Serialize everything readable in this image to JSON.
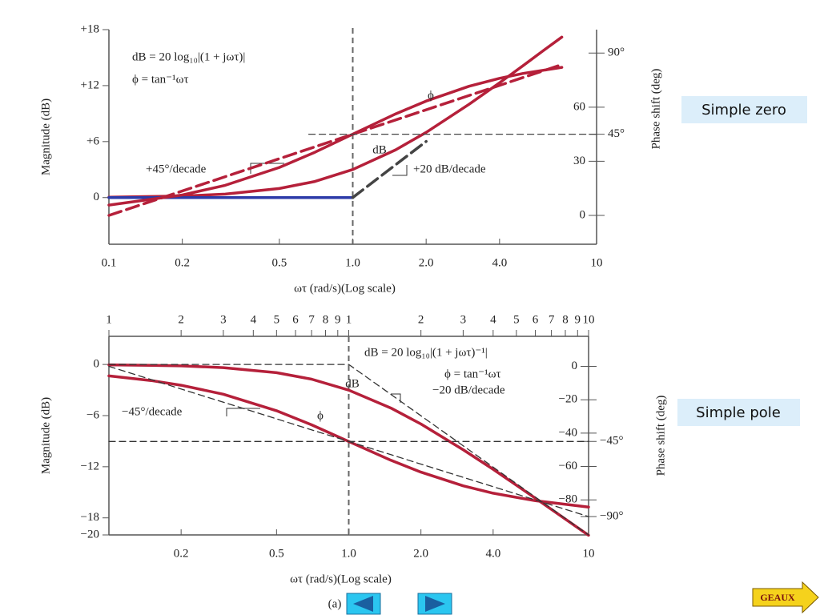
{
  "chart_data": [
    {
      "type": "line",
      "xscale": "log",
      "xlabel": "ωτ (rad/s)(Log scale)",
      "ylabel": "Magnitude (dB)",
      "y2label": "Phase shift (deg)",
      "xlim": [
        0.1,
        10
      ],
      "xticks": [
        0.1,
        0.2,
        0.5,
        {
          "value": 1,
          "label": "1.0"
        },
        {
          "value": 2,
          "label": "2.0"
        },
        {
          "value": 4,
          "label": "4.0"
        },
        10
      ],
      "ylim": [
        -5,
        18
      ],
      "yticks": [
        0,
        {
          "value": 6,
          "label": "+6"
        },
        {
          "value": 12,
          "label": "+12"
        },
        {
          "value": 18,
          "label": "+18"
        }
      ],
      "y2lim": [
        -16,
        103
      ],
      "y2ticks": [
        0,
        30,
        {
          "value": 45,
          "label": "45°"
        },
        60,
        {
          "value": 90,
          "label": "90°"
        }
      ],
      "vlines": [
        1
      ],
      "annotations": [
        "dB  = 20 log₁₀|(1 + jωτ)|",
        "ϕ = tan⁻¹ωτ",
        "+45°/decade",
        "+20 dB/decade"
      ],
      "series": [
        {
          "name": "dB",
          "color": "#b5203a",
          "x": [
            0.1,
            0.2,
            0.3,
            0.5,
            0.7,
            1,
            1.5,
            2,
            3,
            4,
            5,
            6,
            7.2
          ],
          "values": [
            0.04,
            0.17,
            0.37,
            0.97,
            1.73,
            3.01,
            5.12,
            6.99,
            10,
            12.3,
            14.15,
            15.68,
            17.2
          ]
        },
        {
          "color": "#2d3ba8",
          "x": [
            0.1,
            1
          ],
          "values": [
            0,
            0
          ]
        },
        {
          "color": "#444444",
          "dashed": true,
          "x": [
            1,
            2
          ],
          "values": [
            0,
            6.02
          ]
        },
        {
          "name": "ϕ",
          "color": "#b5203a",
          "axis": "y2",
          "x": [
            0.1,
            0.2,
            0.3,
            0.5,
            0.7,
            1,
            1.5,
            2,
            3,
            4,
            5,
            7.2
          ],
          "values": [
            5.7,
            11.3,
            16.7,
            26.6,
            35,
            45,
            56.3,
            63.4,
            71.6,
            76,
            78.7,
            82.1
          ]
        },
        {
          "color": "#b5203a",
          "dashed": true,
          "axis": "y2",
          "x": [
            0.1,
            7.2
          ],
          "values": [
            0,
            83.6
          ]
        },
        {
          "color": "#444444",
          "dashed": true,
          "thin": true,
          "axis": "y2",
          "x": [
            0.66,
            10
          ],
          "values": [
            45,
            45
          ]
        }
      ]
    },
    {
      "type": "line",
      "xscale": "log",
      "xlabel": "ωτ (rad/s)(Log scale)",
      "ylabel": "Magnitude (dB)",
      "y2label": "Phase shift (deg)",
      "xlim": [
        0.1,
        10
      ],
      "xticks": [
        0.2,
        0.5,
        {
          "value": 1,
          "label": "1.0"
        },
        {
          "value": 2,
          "label": "2.0"
        },
        {
          "value": 4,
          "label": "4.0"
        },
        10
      ],
      "x2ticks": [
        {
          "value": 0.1,
          "label": "1"
        },
        {
          "value": 0.2,
          "label": "2"
        },
        {
          "value": 0.3,
          "label": "3"
        },
        {
          "value": 0.4,
          "label": "4"
        },
        {
          "value": 0.5,
          "label": "5"
        },
        {
          "value": 0.6,
          "label": "6"
        },
        {
          "value": 0.7,
          "label": "7"
        },
        {
          "value": 0.8,
          "label": "8"
        },
        {
          "value": 0.9,
          "label": "9"
        },
        1,
        2,
        3,
        4,
        5,
        6,
        7,
        8,
        9,
        10
      ],
      "ylim": [
        -20,
        3.3
      ],
      "yticks": [
        0,
        {
          "value": -6,
          "label": "−6"
        },
        {
          "value": -12,
          "label": "−12"
        },
        {
          "value": -18,
          "label": "−18"
        },
        {
          "value": -20,
          "label": "−20"
        }
      ],
      "y2lim": [
        -101,
        18
      ],
      "y2ticks": [
        0,
        {
          "value": -20,
          "label": "−20"
        },
        {
          "value": -40,
          "label": "−40"
        },
        {
          "value": -45,
          "label": "−45°"
        },
        {
          "value": -60,
          "label": "−60"
        },
        {
          "value": -80,
          "label": "−80"
        },
        {
          "value": -90,
          "label": "−90°"
        }
      ],
      "vlines": [
        1
      ],
      "annotations": [
        "dB = 20 log₁₀|(1 + jωτ)⁻¹|",
        "ϕ = tan⁻¹ωτ",
        "−20 dB/decade",
        "−45°/decade"
      ],
      "series": [
        {
          "name": "dB",
          "color": "#b5203a",
          "x": [
            0.1,
            0.15,
            0.2,
            0.3,
            0.5,
            0.7,
            1,
            1.5,
            2,
            3,
            4,
            6,
            10
          ],
          "values": [
            -0.04,
            -0.1,
            -0.17,
            -0.37,
            -0.97,
            -1.73,
            -3.01,
            -5.12,
            -6.99,
            -10,
            -12.3,
            -15.7,
            -20.04
          ]
        },
        {
          "name": "ϕ",
          "color": "#b5203a",
          "axis": "y2",
          "x": [
            0.1,
            0.15,
            0.2,
            0.3,
            0.5,
            0.7,
            1,
            1.5,
            2,
            3,
            4,
            6,
            10
          ],
          "values": [
            -5.7,
            -8.5,
            -11.3,
            -16.7,
            -26.6,
            -35,
            -45,
            -56.3,
            -63.4,
            -71.6,
            -76,
            -80.5,
            -84.3
          ]
        },
        {
          "color": "#333333",
          "dashed": true,
          "thin": true,
          "x": [
            0.1,
            1,
            10
          ],
          "values": [
            0,
            0,
            -20
          ]
        },
        {
          "color": "#333333",
          "dashed": true,
          "thin": true,
          "axis": "y2",
          "x": [
            0.1,
            10
          ],
          "values": [
            0,
            -90
          ]
        },
        {
          "color": "#333333",
          "dashed": true,
          "thin": true,
          "axis": "y2",
          "x": [
            0.1,
            10
          ],
          "values": [
            -45,
            -45
          ]
        }
      ]
    }
  ],
  "side_labels": [
    "Simple zero",
    "Simple pole"
  ],
  "caption": "(a)",
  "button": "GEAUX"
}
